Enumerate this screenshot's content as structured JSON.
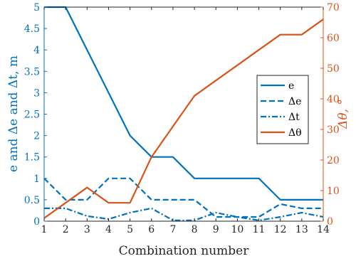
{
  "chart_data": {
    "type": "line",
    "xlabel": "Combination number",
    "ylabel_left": "e and Δe and Δt, m",
    "ylabel_right": "Δθ, °",
    "x": [
      1,
      2,
      3,
      4,
      5,
      6,
      7,
      8,
      9,
      10,
      11,
      12,
      13,
      14
    ],
    "xlim": [
      1,
      14
    ],
    "ylim_left": [
      0,
      5
    ],
    "ylim_right": [
      0,
      70
    ],
    "x_ticks": [
      1,
      2,
      3,
      4,
      5,
      6,
      7,
      8,
      9,
      10,
      11,
      12,
      13,
      14
    ],
    "y_ticks_left": [
      "0",
      "0.5",
      "1",
      "1.5",
      "2",
      "2.5",
      "3",
      "3.5",
      "4",
      "4.5",
      "5"
    ],
    "y_ticks_right": [
      "0",
      "10",
      "20",
      "30",
      "40",
      "50",
      "60",
      "70"
    ],
    "grid": false,
    "legend_position": "center-right",
    "colors": {
      "left_axis": "#0072BD",
      "right_axis": "#D95319",
      "frame": "#262626"
    },
    "series": [
      {
        "name": "e",
        "axis": "left",
        "color": "#0072BD",
        "dash": "solid",
        "values": [
          5,
          5,
          4,
          3,
          2,
          1.5,
          1.5,
          1,
          1,
          1,
          1,
          0.5,
          0.5,
          0.5
        ]
      },
      {
        "name": "Δe",
        "axis": "left",
        "color": "#0072BD",
        "dash": "dashed",
        "values": [
          1,
          0.5,
          0.5,
          1,
          1,
          0.5,
          0.5,
          0.5,
          0.1,
          0.1,
          0.1,
          0.4,
          0.3,
          0.3
        ]
      },
      {
        "name": "Δt",
        "axis": "left",
        "color": "#0072BD",
        "dash": "dashdot",
        "values": [
          0.3,
          0.3,
          0.12,
          0.05,
          0.2,
          0.3,
          0.02,
          0.02,
          0.2,
          0.1,
          0.02,
          0.1,
          0.2,
          0.1
        ]
      },
      {
        "name": "Δθ",
        "axis": "right",
        "color": "#D95319",
        "dash": "solid",
        "values": [
          1,
          6,
          11,
          6,
          6,
          21,
          31,
          41,
          46,
          51,
          56,
          61,
          61,
          66
        ]
      }
    ]
  }
}
